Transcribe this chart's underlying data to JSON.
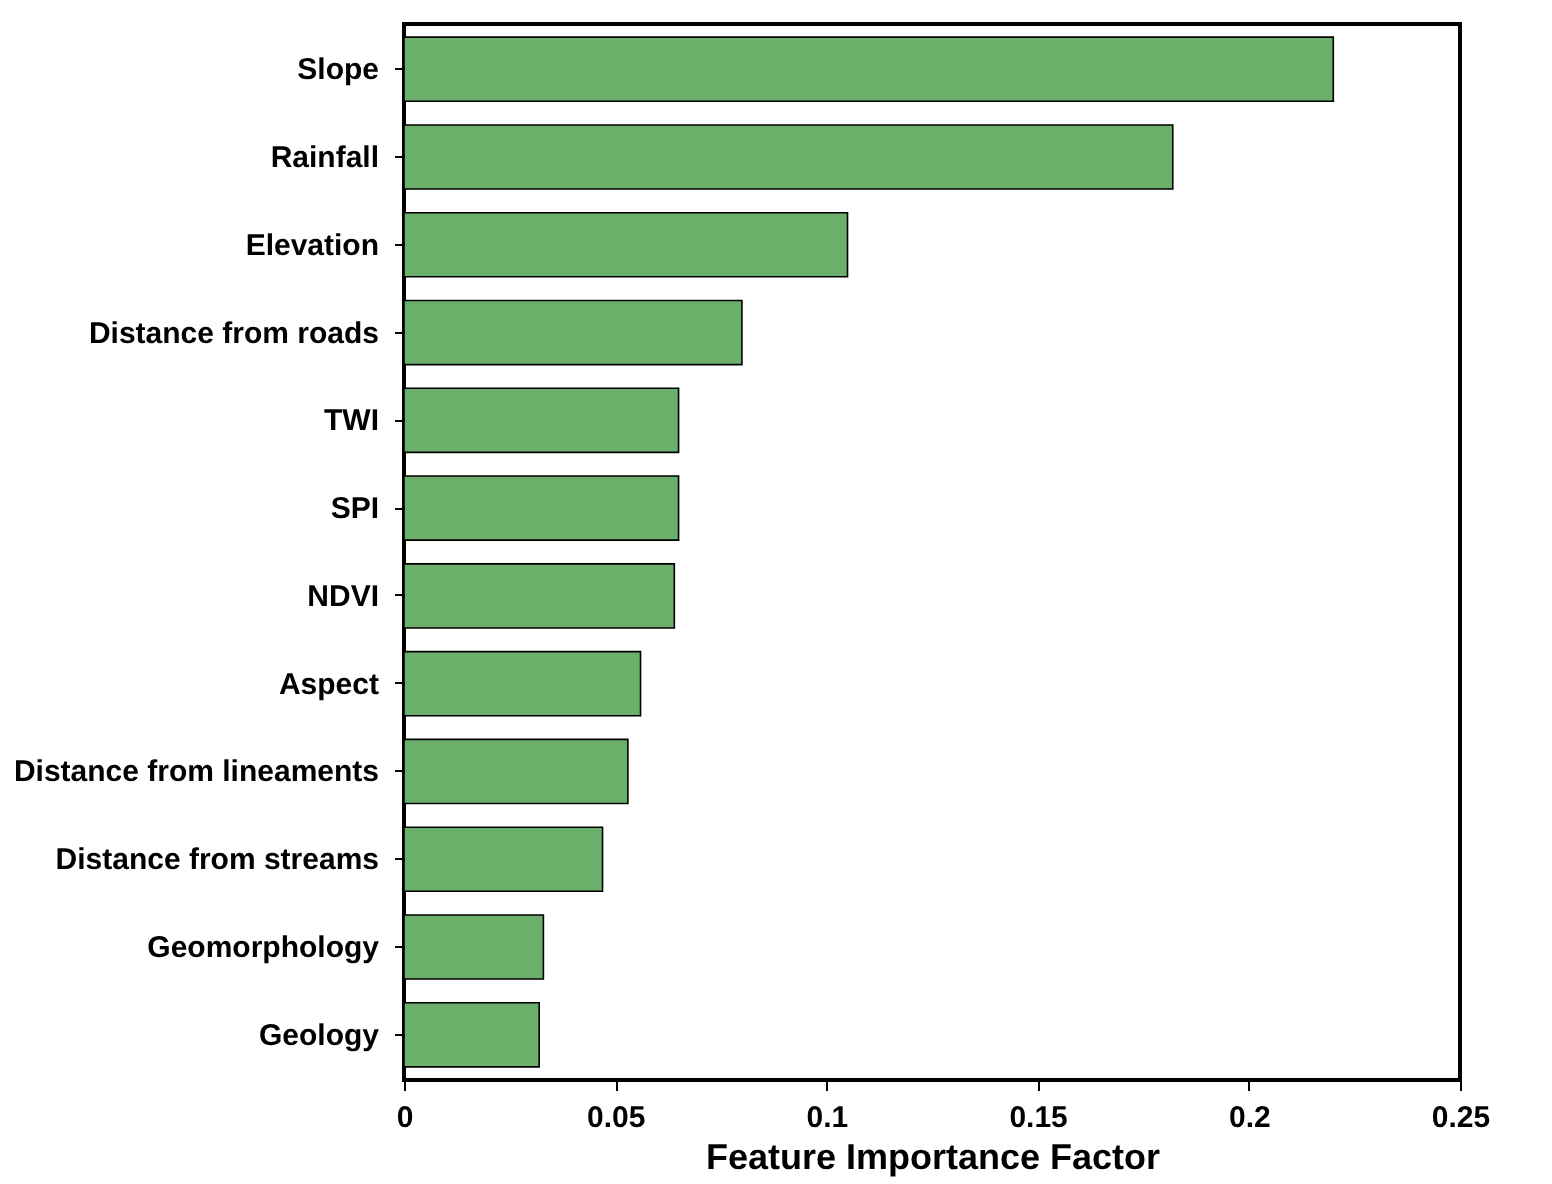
{
  "chart_data": {
    "type": "bar",
    "orientation": "horizontal",
    "xlabel": "Feature Importance Factor",
    "categories": [
      "Slope",
      "Rainfall",
      "Elevation",
      "Distance from roads",
      "TWI",
      "SPI",
      "NDVI",
      "Aspect",
      "Distance from lineaments",
      "Distance from streams",
      "Geomorphology",
      "Geology"
    ],
    "values": [
      0.22,
      0.182,
      0.105,
      0.08,
      0.065,
      0.065,
      0.064,
      0.056,
      0.053,
      0.047,
      0.033,
      0.032
    ],
    "color": "#6aaf6a",
    "xlim": [
      0,
      0.25
    ],
    "xticks": [
      0,
      0.05,
      0.1,
      0.15,
      0.2,
      0.25
    ],
    "grid": false
  }
}
